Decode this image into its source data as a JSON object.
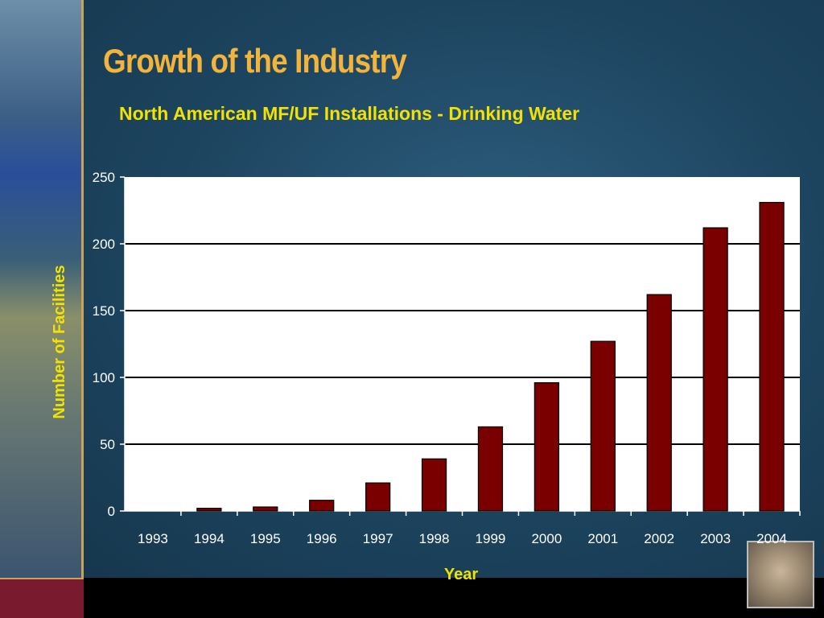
{
  "slide": {
    "title": "Growth of the Industry"
  },
  "chart_data": {
    "type": "bar",
    "title": "North American MF/UF Installations - Drinking Water",
    "xlabel": "Year",
    "ylabel": "Number of Facilities",
    "categories": [
      "1993",
      "1994",
      "1995",
      "1996",
      "1997",
      "1998",
      "1999",
      "2000",
      "2001",
      "2002",
      "2003",
      "2004"
    ],
    "values": [
      0,
      2,
      3,
      8,
      21,
      39,
      63,
      96,
      127,
      162,
      212,
      231
    ],
    "ylim": [
      0,
      250
    ],
    "yticks": [
      0,
      50,
      100,
      150,
      200,
      250
    ],
    "grid": true,
    "bar_color": "#7a0000",
    "plot_background": "#ffffff"
  }
}
